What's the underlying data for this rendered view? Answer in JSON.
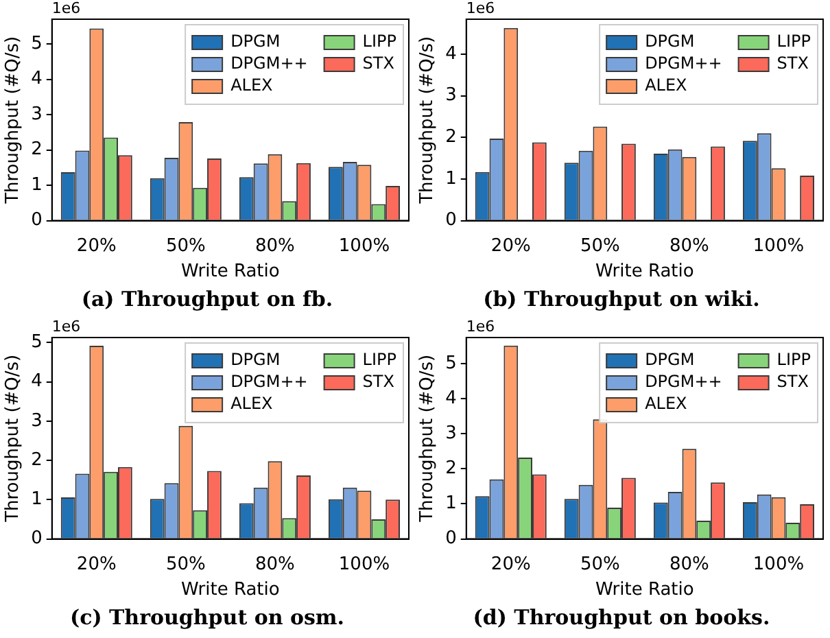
{
  "chart_data": [
    {
      "type": "bar",
      "title": "(a) Throughput on fb.",
      "xlabel": "Write Ratio",
      "ylabel": "Throughput (#Q/s)",
      "annotations": [
        "1e6"
      ],
      "categories": [
        "20%",
        "50%",
        "80%",
        "100%"
      ],
      "series": [
        {
          "name": "DPGM",
          "color": "#2171b5",
          "values": [
            1.37,
            1.2,
            1.23,
            1.52
          ]
        },
        {
          "name": "DPGM++",
          "color": "#7ba3db",
          "values": [
            1.98,
            1.78,
            1.62,
            1.66
          ]
        },
        {
          "name": "ALEX",
          "color": "#fc9d6a",
          "values": [
            5.44,
            2.79,
            1.88,
            1.58
          ]
        },
        {
          "name": "LIPP",
          "color": "#88d47a",
          "values": [
            2.35,
            0.93,
            0.55,
            0.47
          ]
        },
        {
          "name": "STX",
          "color": "#fb6a5a",
          "values": [
            1.85,
            1.76,
            1.63,
            0.98
          ]
        }
      ],
      "ylim": [
        0,
        5.7
      ],
      "yticks": [
        0,
        1,
        2,
        3,
        4,
        5
      ],
      "grid": false,
      "legend": "top right"
    },
    {
      "type": "bar",
      "title": "(b) Throughput on wiki.",
      "xlabel": "Write Ratio",
      "ylabel": "Throughput (#Q/s)",
      "annotations": [
        "1e6"
      ],
      "categories": [
        "20%",
        "50%",
        "80%",
        "100%"
      ],
      "series": [
        {
          "name": "DPGM",
          "color": "#2171b5",
          "values": [
            1.17,
            1.39,
            1.61,
            1.92
          ]
        },
        {
          "name": "DPGM++",
          "color": "#7ba3db",
          "values": [
            1.97,
            1.68,
            1.71,
            2.1
          ]
        },
        {
          "name": "ALEX",
          "color": "#fc9d6a",
          "values": [
            4.63,
            2.26,
            1.53,
            1.26
          ]
        },
        {
          "name": "LIPP",
          "color": "#88d47a",
          "values": [
            null,
            null,
            null,
            null
          ]
        },
        {
          "name": "STX",
          "color": "#fb6a5a",
          "values": [
            1.88,
            1.85,
            1.78,
            1.08
          ]
        }
      ],
      "ylim": [
        0,
        4.84
      ],
      "yticks": [
        0,
        1,
        2,
        3,
        4
      ],
      "grid": false,
      "legend": "top right"
    },
    {
      "type": "bar",
      "title": "(c) Throughput on osm.",
      "xlabel": "Write Ratio",
      "ylabel": "Throughput (#Q/s)",
      "annotations": [
        "1e6"
      ],
      "categories": [
        "20%",
        "50%",
        "80%",
        "100%"
      ],
      "series": [
        {
          "name": "DPGM",
          "color": "#2171b5",
          "values": [
            1.06,
            1.02,
            0.91,
            1.01
          ]
        },
        {
          "name": "DPGM++",
          "color": "#7ba3db",
          "values": [
            1.66,
            1.42,
            1.31,
            1.31
          ]
        },
        {
          "name": "ALEX",
          "color": "#fc9d6a",
          "values": [
            4.92,
            2.88,
            1.98,
            1.23
          ]
        },
        {
          "name": "LIPP",
          "color": "#88d47a",
          "values": [
            1.71,
            0.73,
            0.53,
            0.5
          ]
        },
        {
          "name": "STX",
          "color": "#fb6a5a",
          "values": [
            1.83,
            1.73,
            1.62,
            1.0
          ]
        }
      ],
      "ylim": [
        0,
        5.13
      ],
      "yticks": [
        0,
        1,
        2,
        3,
        4,
        5
      ],
      "grid": false,
      "legend": "top right"
    },
    {
      "type": "bar",
      "title": "(d) Throughput on books.",
      "xlabel": "Write Ratio",
      "ylabel": "Throughput (#Q/s)",
      "annotations": [
        "1e6"
      ],
      "categories": [
        "20%",
        "50%",
        "80%",
        "100%"
      ],
      "series": [
        {
          "name": "DPGM",
          "color": "#2171b5",
          "values": [
            1.22,
            1.14,
            1.04,
            1.05
          ]
        },
        {
          "name": "DPGM++",
          "color": "#7ba3db",
          "values": [
            1.7,
            1.54,
            1.34,
            1.27
          ]
        },
        {
          "name": "ALEX",
          "color": "#fc9d6a",
          "values": [
            5.51,
            3.41,
            2.57,
            1.19
          ]
        },
        {
          "name": "LIPP",
          "color": "#88d47a",
          "values": [
            2.32,
            0.89,
            0.52,
            0.46
          ]
        },
        {
          "name": "STX",
          "color": "#fb6a5a",
          "values": [
            1.84,
            1.74,
            1.61,
            0.99
          ]
        }
      ],
      "ylim": [
        0,
        5.74
      ],
      "yticks": [
        0,
        1,
        2,
        3,
        4,
        5
      ],
      "grid": false,
      "legend": "top right"
    }
  ]
}
